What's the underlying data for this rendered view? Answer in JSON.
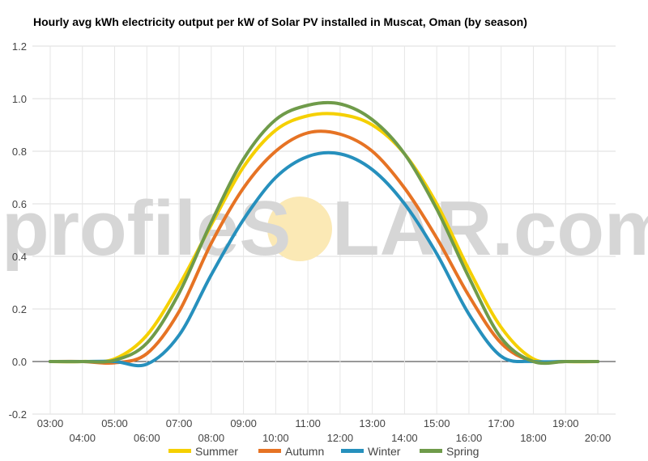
{
  "title": "Hourly avg kWh electricity output per kW of Solar PV installed in Muscat, Oman (by season)",
  "watermark": {
    "left": "profileS",
    "right": "LAR.com",
    "sun_color": "#fbe9b5"
  },
  "chart_data": {
    "type": "line",
    "title": "Hourly avg kWh electricity output per kW of Solar PV installed in Muscat, Oman (by season)",
    "x": [
      "03:00",
      "04:00",
      "05:00",
      "06:00",
      "07:00",
      "08:00",
      "09:00",
      "10:00",
      "11:00",
      "12:00",
      "13:00",
      "14:00",
      "15:00",
      "16:00",
      "17:00",
      "18:00",
      "19:00",
      "20:00"
    ],
    "ylim": [
      -0.2,
      1.2
    ],
    "yticks": [
      "-0.2",
      "0.0",
      "0.2",
      "0.4",
      "0.6",
      "0.8",
      "1.0",
      "1.2"
    ],
    "grid": true,
    "legend_position": "bottom",
    "series": [
      {
        "name": "Summer",
        "color": "#f5d000",
        "values": [
          0,
          0,
          0.01,
          0.1,
          0.29,
          0.52,
          0.74,
          0.88,
          0.935,
          0.94,
          0.9,
          0.79,
          0.6,
          0.35,
          0.13,
          0.01,
          0,
          0
        ]
      },
      {
        "name": "Autumn",
        "color": "#e67324",
        "values": [
          0,
          0,
          -0.005,
          0.03,
          0.19,
          0.45,
          0.66,
          0.8,
          0.87,
          0.865,
          0.8,
          0.66,
          0.47,
          0.25,
          0.07,
          0,
          0,
          0
        ]
      },
      {
        "name": "Winter",
        "color": "#2690bd",
        "values": [
          0,
          0,
          0,
          -0.01,
          0.1,
          0.33,
          0.54,
          0.7,
          0.78,
          0.79,
          0.73,
          0.6,
          0.41,
          0.18,
          0.02,
          0,
          0,
          0
        ]
      },
      {
        "name": "Spring",
        "color": "#6f9b4a",
        "values": [
          0,
          0,
          0.005,
          0.07,
          0.26,
          0.53,
          0.77,
          0.92,
          0.975,
          0.98,
          0.92,
          0.79,
          0.58,
          0.32,
          0.09,
          0,
          0,
          0
        ]
      }
    ]
  }
}
